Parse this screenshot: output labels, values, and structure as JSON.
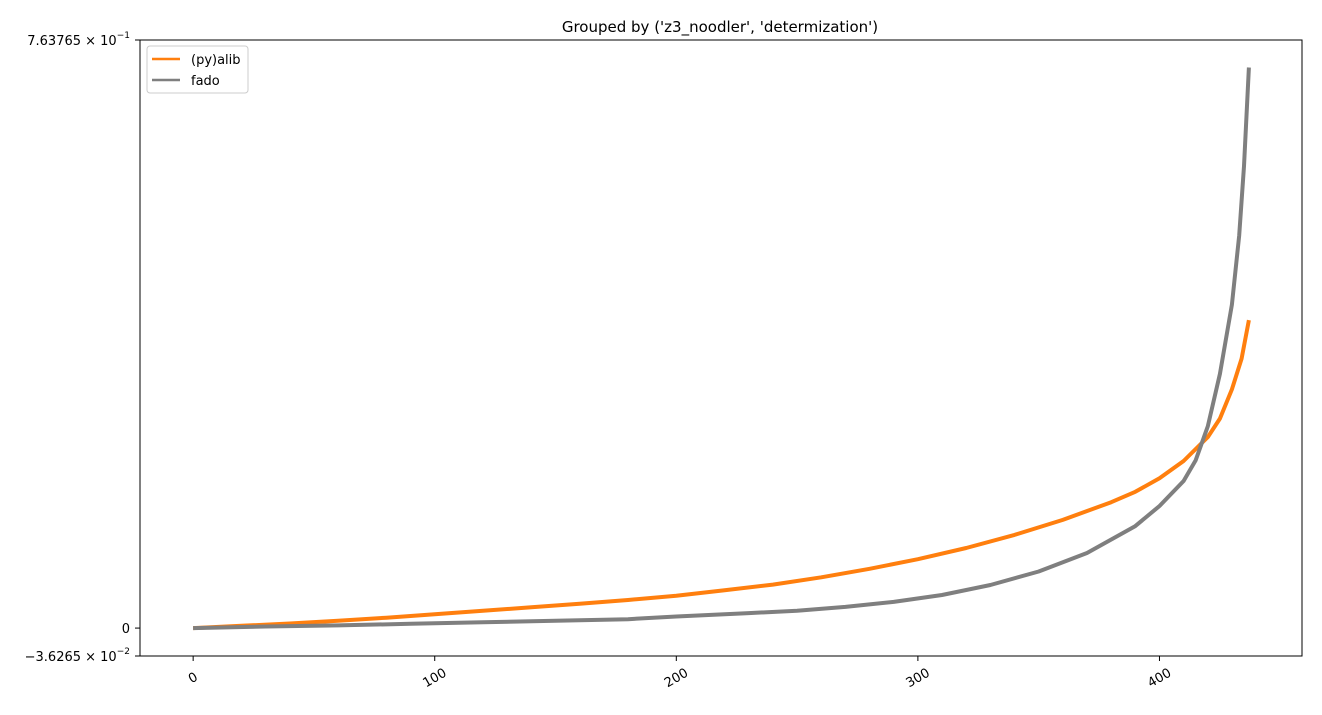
{
  "chart_data": {
    "type": "line",
    "title": "Grouped by ('z3_noodler', 'determization')",
    "xlabel": "",
    "ylabel": "",
    "xlim": [
      -22,
      459
    ],
    "ylim": [
      -0.036265,
      0.763765
    ],
    "x_ticks": [
      0,
      100,
      200,
      300,
      400
    ],
    "y_ticks": [
      {
        "value": 0.763765,
        "label_main": "7.63765 × 10",
        "label_exp": "−1"
      },
      {
        "value": 0,
        "label_main": "0",
        "label_exp": ""
      },
      {
        "value": -0.036265,
        "label_main": "−3.6265 × 10",
        "label_exp": "−2"
      }
    ],
    "legend": {
      "position": "top-left"
    },
    "grid": false,
    "series": [
      {
        "name": "(py)alib",
        "color": "#ff7f0e",
        "points": [
          [
            0,
            0.0
          ],
          [
            20,
            0.003
          ],
          [
            40,
            0.006
          ],
          [
            60,
            0.0095
          ],
          [
            80,
            0.0135
          ],
          [
            100,
            0.018
          ],
          [
            120,
            0.0225
          ],
          [
            140,
            0.027
          ],
          [
            160,
            0.0315
          ],
          [
            180,
            0.0365
          ],
          [
            200,
            0.042
          ],
          [
            220,
            0.049
          ],
          [
            240,
            0.0565
          ],
          [
            260,
            0.066
          ],
          [
            280,
            0.077
          ],
          [
            300,
            0.0895
          ],
          [
            320,
            0.104
          ],
          [
            340,
            0.121
          ],
          [
            360,
            0.1405
          ],
          [
            380,
            0.1635
          ],
          [
            390,
            0.177
          ],
          [
            400,
            0.1945
          ],
          [
            410,
            0.217
          ],
          [
            420,
            0.248
          ],
          [
            425,
            0.272
          ],
          [
            430,
            0.31
          ],
          [
            434,
            0.35
          ],
          [
            437,
            0.4
          ]
        ]
      },
      {
        "name": "fado",
        "color": "#7f7f7f",
        "points": [
          [
            0,
            0.0
          ],
          [
            30,
            0.002
          ],
          [
            60,
            0.0035
          ],
          [
            90,
            0.0055
          ],
          [
            120,
            0.0075
          ],
          [
            150,
            0.0095
          ],
          [
            180,
            0.0115
          ],
          [
            200,
            0.015
          ],
          [
            230,
            0.0195
          ],
          [
            250,
            0.0225
          ],
          [
            270,
            0.0275
          ],
          [
            290,
            0.034
          ],
          [
            310,
            0.043
          ],
          [
            330,
            0.056
          ],
          [
            350,
            0.0735
          ],
          [
            370,
            0.0975
          ],
          [
            390,
            0.1325
          ],
          [
            400,
            0.1585
          ],
          [
            410,
            0.191
          ],
          [
            415,
            0.218
          ],
          [
            420,
            0.262
          ],
          [
            425,
            0.33
          ],
          [
            430,
            0.42
          ],
          [
            433,
            0.51
          ],
          [
            435,
            0.6
          ],
          [
            437,
            0.728
          ]
        ]
      }
    ]
  }
}
